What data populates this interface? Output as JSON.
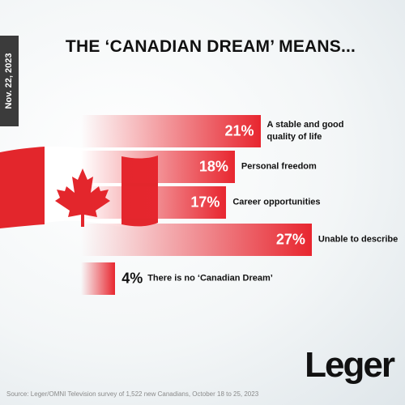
{
  "chart_data": {
    "type": "bar",
    "orientation": "horizontal",
    "title": "THE ‘CANADIAN DREAM’ MEANS...",
    "date": "Nov. 22, 2023",
    "categories": [
      "A stable and good quality of life",
      "Personal freedom",
      "Career opportunities",
      "Unable to describe",
      "There is no ‘Canadian Dream’"
    ],
    "values": [
      21,
      18,
      17,
      27,
      4
    ],
    "value_labels": [
      "21%",
      "18%",
      "17%",
      "27%",
      "4%"
    ],
    "color": "#e8262f",
    "source": "Source: Leger/OMNI Television survey of 1,522 new Canadians, October 18 to 25, 2023",
    "logo": "Leger"
  }
}
